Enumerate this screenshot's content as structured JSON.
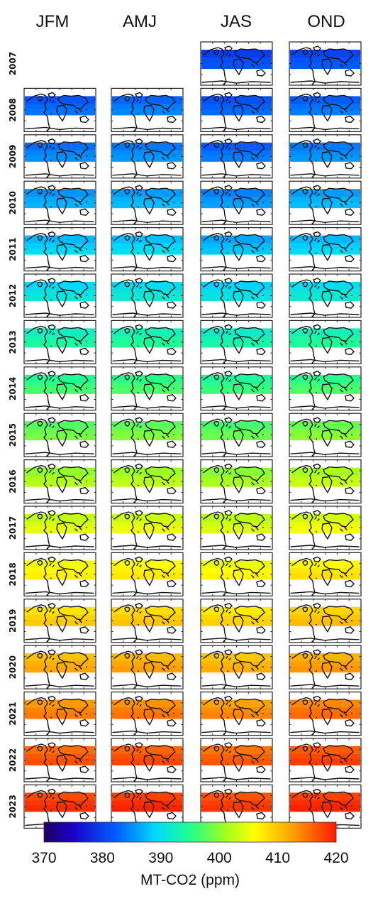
{
  "chart_data": {
    "type": "heatmap",
    "title": "",
    "columns": [
      "JFM",
      "AMJ",
      "JAS",
      "OND"
    ],
    "rows": [
      "2007",
      "2008",
      "2009",
      "2010",
      "2011",
      "2012",
      "2013",
      "2014",
      "2015",
      "2016",
      "2017",
      "2018",
      "2019",
      "2020",
      "2021",
      "2022",
      "2023"
    ],
    "panel_content": "map",
    "values": [
      [
        null,
        null,
        381,
        381.5
      ],
      [
        383,
        384,
        382.5,
        383.5
      ],
      [
        384.5,
        385,
        383.5,
        385
      ],
      [
        386.5,
        387,
        385.5,
        387
      ],
      [
        388.5,
        389,
        387.5,
        388.5
      ],
      [
        390.5,
        391,
        390,
        391
      ],
      [
        393.5,
        394,
        393,
        394
      ],
      [
        396,
        396.5,
        395.5,
        396.5
      ],
      [
        398.5,
        399,
        398,
        399.5
      ],
      [
        401.5,
        402,
        401,
        402.5
      ],
      [
        404,
        404.5,
        403.5,
        405
      ],
      [
        406.5,
        407,
        406,
        407.5
      ],
      [
        409,
        409.5,
        408.5,
        410
      ],
      [
        411.5,
        412,
        411,
        412.5
      ],
      [
        414,
        414.5,
        413.5,
        415
      ],
      [
        416.5,
        417,
        416,
        417.5
      ],
      [
        418.5,
        419,
        418,
        419
      ]
    ],
    "colorbar": {
      "min": 370,
      "max": 420,
      "colormap": "jet",
      "ticks": [
        "370",
        "380",
        "390",
        "400",
        "410",
        "420"
      ],
      "label": "MT-CO2 (ppm)"
    }
  }
}
